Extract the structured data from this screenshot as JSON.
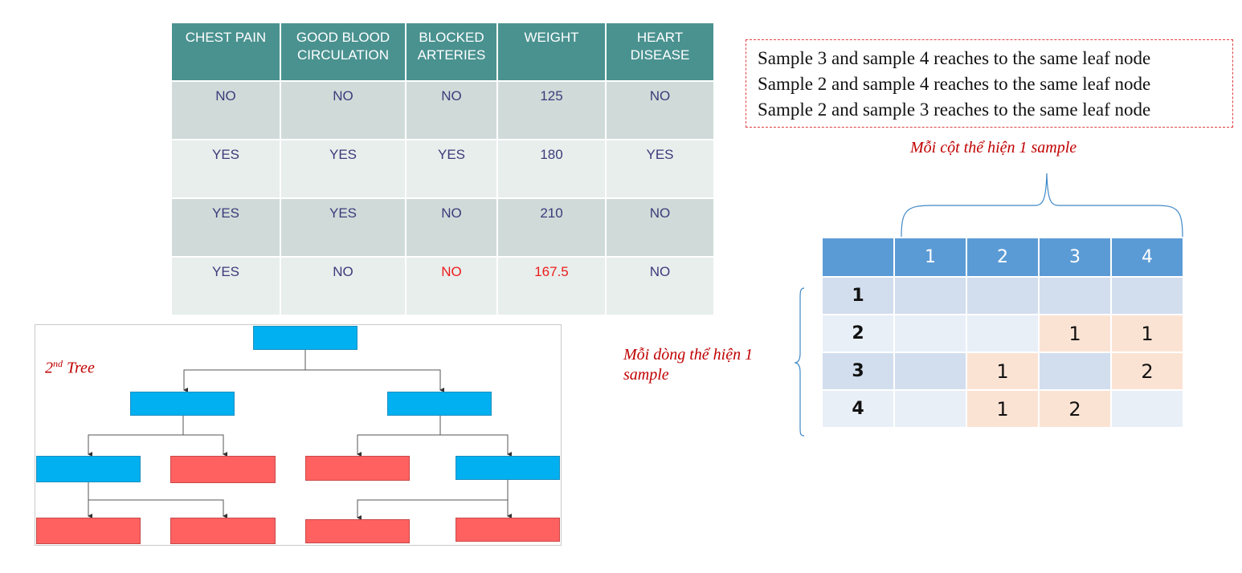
{
  "data_table": {
    "headers": [
      [
        "CHEST PAIN"
      ],
      [
        "GOOD BLOOD",
        "CIRCULATION"
      ],
      [
        "BLOCKED",
        "ARTERIES"
      ],
      [
        "WEIGHT"
      ],
      [
        "HEART",
        "DISEASE"
      ]
    ],
    "rows": [
      [
        "NO",
        "NO",
        "NO",
        "125",
        "NO"
      ],
      [
        "YES",
        "YES",
        "YES",
        "180",
        "YES"
      ],
      [
        "YES",
        "YES",
        "NO",
        "210",
        "NO"
      ],
      [
        "YES",
        "NO",
        "NO",
        "167.5",
        "NO"
      ]
    ],
    "highlight_color": "#ee1c1c",
    "header_color": "#4a9290"
  },
  "tree": {
    "title_main": "2",
    "title_sup": "nd",
    "title_rest": " Tree",
    "node_colors": {
      "split": "#00b0f0",
      "leaf": "#ff6161"
    }
  },
  "notes": [
    "Sample 3 and sample 4 reaches to the same leaf node",
    "Sample 2 and sample 4 reaches to the same leaf node",
    "Sample 2 and sample 3 reaches to the same leaf node"
  ],
  "captions": {
    "columns": "Mỗi cột  thể hiện 1 sample",
    "rows": "Mỗi dòng thể hiện 1 sample"
  },
  "matrix": {
    "col_headers": [
      "1",
      "2",
      "3",
      "4"
    ],
    "row_headers": [
      "1",
      "2",
      "3",
      "4"
    ],
    "cells": [
      [
        "",
        "",
        "",
        ""
      ],
      [
        "",
        "",
        "1",
        "1"
      ],
      [
        "",
        "1",
        "",
        "2"
      ],
      [
        "",
        "1",
        "2",
        ""
      ]
    ],
    "colors": {
      "header": "#5b9bd5",
      "filled": "#fbe3d4"
    }
  }
}
